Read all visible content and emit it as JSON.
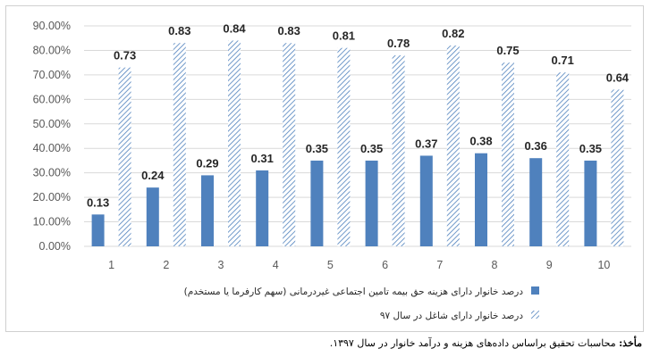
{
  "chart_data": {
    "type": "bar",
    "categories": [
      "1",
      "2",
      "3",
      "4",
      "5",
      "6",
      "7",
      "8",
      "9",
      "10"
    ],
    "series": [
      {
        "name": "درصد خانوار دارای هزینه حق بیمه تامین اجتماعی غیردرمانی (سهم کارفرما یا مستخدم)",
        "values": [
          0.13,
          0.24,
          0.29,
          0.31,
          0.35,
          0.35,
          0.37,
          0.38,
          0.36,
          0.35
        ],
        "labels": [
          "0.13",
          "0.24",
          "0.29",
          "0.31",
          "0.35",
          "0.35",
          "0.37",
          "0.38",
          "0.36",
          "0.35"
        ],
        "color": "#4f81bd",
        "fill": "solid"
      },
      {
        "name": "درصد خانوار دارای شاغل در سال ۹۷",
        "values": [
          0.73,
          0.83,
          0.84,
          0.83,
          0.81,
          0.78,
          0.82,
          0.75,
          0.71,
          0.64
        ],
        "labels": [
          "0.73",
          "0.83",
          "0.84",
          "0.83",
          "0.81",
          "0.78",
          "0.82",
          "0.75",
          "0.71",
          "0.64"
        ],
        "color": "#4f81bd",
        "fill": "diagonal-hatch"
      }
    ],
    "y_ticks": [
      "0.00%",
      "10.00%",
      "20.00%",
      "30.00%",
      "40.00%",
      "50.00%",
      "60.00%",
      "70.00%",
      "80.00%",
      "90.00%"
    ],
    "ylim": [
      0,
      0.9
    ],
    "grid": true,
    "legend_position": "bottom",
    "title": "",
    "xlabel": "",
    "ylabel": "",
    "gridline_color": "#d9d9d9"
  },
  "source": {
    "label": "مأخذ:",
    "text": " محاسبات تحقیق براساس داده‌های هزینه و درآمد خانوار در سال ۱۳۹۷."
  }
}
